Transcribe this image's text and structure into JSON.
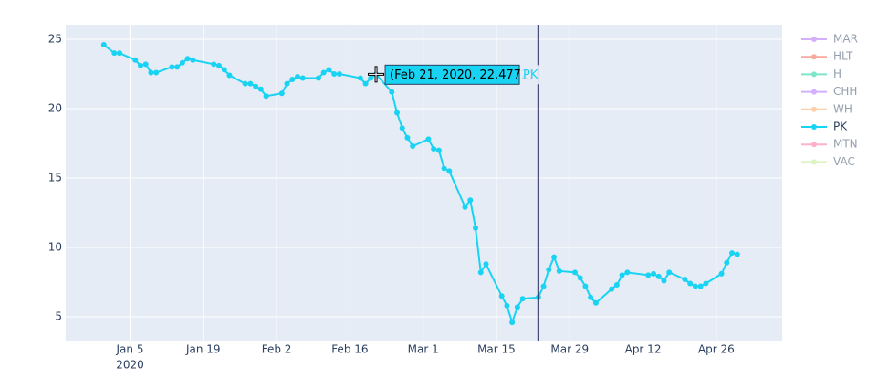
{
  "chart_data": {
    "type": "line",
    "x": [
      "2019-12-31",
      "2020-01-02",
      "2020-01-03",
      "2020-01-06",
      "2020-01-07",
      "2020-01-08",
      "2020-01-09",
      "2020-01-10",
      "2020-01-13",
      "2020-01-14",
      "2020-01-15",
      "2020-01-16",
      "2020-01-17",
      "2020-01-21",
      "2020-01-22",
      "2020-01-23",
      "2020-01-24",
      "2020-01-27",
      "2020-01-28",
      "2020-01-29",
      "2020-01-30",
      "2020-01-31",
      "2020-02-03",
      "2020-02-04",
      "2020-02-05",
      "2020-02-06",
      "2020-02-07",
      "2020-02-10",
      "2020-02-11",
      "2020-02-12",
      "2020-02-13",
      "2020-02-14",
      "2020-02-18",
      "2020-02-19",
      "2020-02-20",
      "2020-02-21",
      "2020-02-24",
      "2020-02-25",
      "2020-02-26",
      "2020-02-27",
      "2020-02-28",
      "2020-03-02",
      "2020-03-03",
      "2020-03-04",
      "2020-03-05",
      "2020-03-06",
      "2020-03-09",
      "2020-03-10",
      "2020-03-11",
      "2020-03-12",
      "2020-03-13",
      "2020-03-16",
      "2020-03-17",
      "2020-03-18",
      "2020-03-19",
      "2020-03-20",
      "2020-03-23",
      "2020-03-24",
      "2020-03-25",
      "2020-03-26",
      "2020-03-27",
      "2020-03-30",
      "2020-03-31",
      "2020-04-01",
      "2020-04-02",
      "2020-04-03",
      "2020-04-06",
      "2020-04-07",
      "2020-04-08",
      "2020-04-09",
      "2020-04-13",
      "2020-04-14",
      "2020-04-15",
      "2020-04-16",
      "2020-04-17",
      "2020-04-20",
      "2020-04-21",
      "2020-04-22",
      "2020-04-23",
      "2020-04-24",
      "2020-04-27",
      "2020-04-28",
      "2020-04-29",
      "2020-04-30"
    ],
    "series": [
      {
        "name": "MAR",
        "color": "#ab63fa",
        "visible": "legendonly"
      },
      {
        "name": "HLT",
        "color": "#EF553B",
        "visible": "legendonly"
      },
      {
        "name": "H",
        "color": "#00cc96",
        "visible": "legendonly"
      },
      {
        "name": "CHH",
        "color": "#ab63fa",
        "visible": "legendonly"
      },
      {
        "name": "WH",
        "color": "#FFA15A",
        "visible": "legendonly"
      },
      {
        "name": "PK",
        "color": "#19d3f3",
        "visible": true,
        "values": [
          24.6,
          24.0,
          24.0,
          23.5,
          23.1,
          23.2,
          22.6,
          22.6,
          23.0,
          23.0,
          23.3,
          23.6,
          23.5,
          23.2,
          23.1,
          22.8,
          22.4,
          21.8,
          21.8,
          21.6,
          21.4,
          20.9,
          21.1,
          21.8,
          22.1,
          22.3,
          22.2,
          22.2,
          22.6,
          22.8,
          22.5,
          22.5,
          22.2,
          21.8,
          22.2,
          22.4772,
          21.2,
          19.7,
          18.6,
          17.9,
          17.3,
          17.8,
          17.1,
          17.0,
          15.7,
          15.5,
          12.9,
          13.4,
          11.4,
          8.2,
          8.8,
          6.5,
          5.8,
          4.6,
          5.7,
          6.3,
          6.4,
          7.2,
          8.4,
          9.3,
          8.3,
          8.2,
          7.8,
          7.2,
          6.4,
          6.0,
          7.0,
          7.3,
          8.0,
          8.2,
          8.0,
          8.1,
          7.9,
          7.6,
          8.2,
          7.7,
          7.4,
          7.2,
          7.2,
          7.4,
          8.1,
          8.9,
          9.6,
          9.5
        ]
      },
      {
        "name": "MTN",
        "color": "#FF6692",
        "visible": "legendonly"
      },
      {
        "name": "VAC",
        "color": "#B6E880",
        "visible": "legendonly"
      }
    ],
    "xlim": [
      "2019-12-23T17:00",
      "2020-05-08T14:00"
    ],
    "xticks": [
      {
        "value": "2020-01-05",
        "label": "Jan 5",
        "year": "2020"
      },
      {
        "value": "2020-01-19",
        "label": "Jan 19"
      },
      {
        "value": "2020-02-02",
        "label": "Feb 2"
      },
      {
        "value": "2020-02-16",
        "label": "Feb 16"
      },
      {
        "value": "2020-03-01",
        "label": "Mar 1"
      },
      {
        "value": "2020-03-15",
        "label": "Mar 15"
      },
      {
        "value": "2020-03-29",
        "label": "Mar 29"
      },
      {
        "value": "2020-04-12",
        "label": "Apr 12"
      },
      {
        "value": "2020-04-26",
        "label": "Apr 26"
      }
    ],
    "ylim": [
      3.29,
      26.05
    ],
    "yticks": [
      5,
      10,
      15,
      20,
      25
    ],
    "grid": true,
    "vline": "2020-03-23",
    "vline_color": "#2a2f5f",
    "hover": {
      "index": 35,
      "series": 5,
      "text": "(Feb 21, 2020, 22.4772)",
      "name": "PK"
    }
  }
}
